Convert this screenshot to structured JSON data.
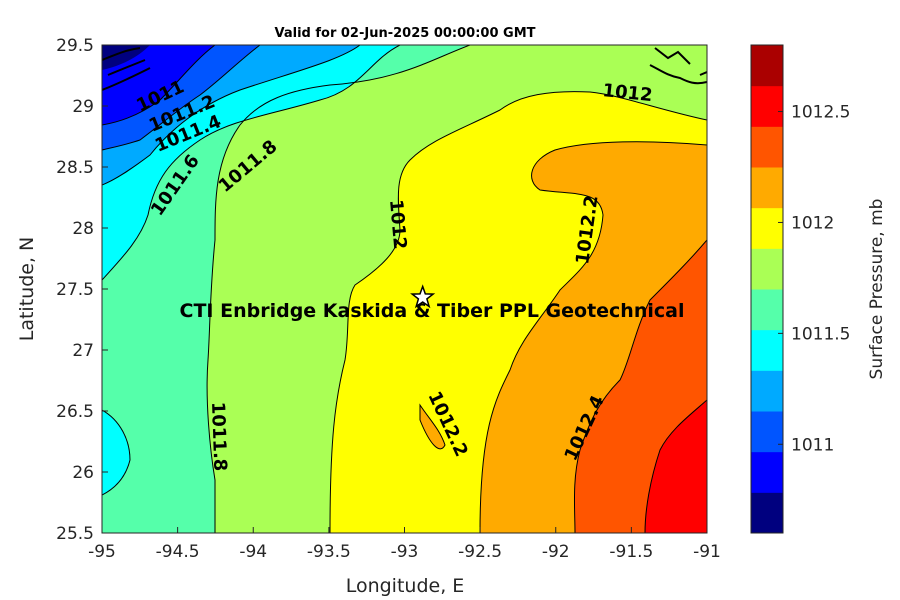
{
  "title": "Valid for 02-Jun-2025 00:00:00 GMT",
  "x_axis": {
    "label": "Longitude, E",
    "ticks": [
      "-95",
      "-94.5",
      "-94",
      "-93.5",
      "-93",
      "-92.5",
      "-92",
      "-91.5",
      "-91"
    ]
  },
  "y_axis": {
    "label": "Latitude, N",
    "ticks": [
      "29.5",
      "29",
      "28.5",
      "28",
      "27.5",
      "27",
      "26.5",
      "26",
      "25.5"
    ]
  },
  "colorbar": {
    "label": "Surface Pressure, mb",
    "ticks": [
      "1012.5",
      "1012",
      "1011.5",
      "1011"
    ],
    "colors": [
      "#00007f",
      "#0000ff",
      "#0055ff",
      "#00aaff",
      "#00ffff",
      "#55ffaa",
      "#aaff55",
      "#ffff00",
      "#ffaa00",
      "#ff5500",
      "#ff0000",
      "#aa0000"
    ]
  },
  "contour_labels": [
    "1011",
    "1011.2",
    "1011.4",
    "1011.6",
    "1011.8",
    "1012",
    "1012",
    "1012.2",
    "1011.8",
    "1012.2",
    "1012.4"
  ],
  "site": {
    "name": "CTI Enbridge  Kaskida & Tiber PPL Geotechnical",
    "lon": -92.88,
    "lat": 27.43
  },
  "map_data": {
    "type": "contour",
    "variable": "Surface Pressure",
    "units": "mb",
    "lon_range": [
      -95,
      -91
    ],
    "lat_range": [
      25.5,
      29.5
    ],
    "levels": [
      1011,
      1011.2,
      1011.4,
      1011.6,
      1011.8,
      1012,
      1012.2,
      1012.4
    ]
  }
}
